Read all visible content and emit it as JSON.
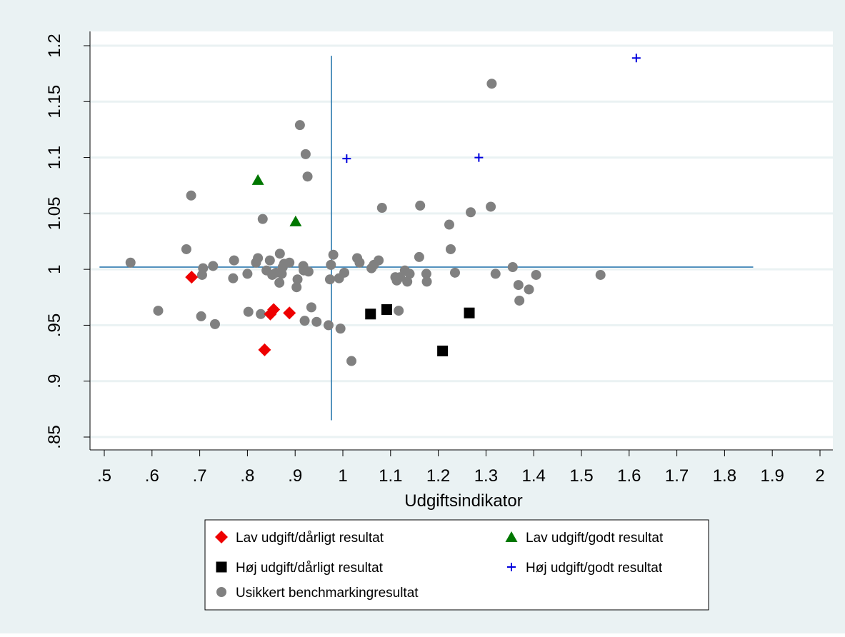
{
  "chart_data": {
    "type": "scatter",
    "title": "",
    "xlabel": "Udgiftsindikator",
    "ylabel": "",
    "xlim": [
      0.47,
      2.0
    ],
    "ylim": [
      0.835,
      1.205
    ],
    "x_ticks": [
      0.5,
      0.6,
      0.7,
      0.8,
      0.9,
      1.0,
      1.1,
      1.2,
      1.3,
      1.4,
      1.5,
      1.6,
      1.7,
      1.8,
      1.9,
      2.0
    ],
    "x_tick_labels": [
      ".5",
      ".6",
      ".7",
      ".8",
      ".9",
      "1",
      "1.1",
      "1.2",
      "1.3",
      "1.4",
      "1.5",
      "1.6",
      "1.7",
      "1.8",
      "1.9",
      "2"
    ],
    "y_ticks": [
      0.85,
      0.9,
      0.95,
      1.0,
      1.05,
      1.1,
      1.15,
      1.2
    ],
    "y_tick_labels": [
      ".85",
      ".9",
      ".95",
      "1",
      "1.05",
      "1.1",
      "1.15",
      "1.2"
    ],
    "grid": "horizontal",
    "legend_position": "bottom",
    "colors": {
      "plot_bg": "#ffffff",
      "outer_bg": "#eaf2f3",
      "grid": "#eaf2f3",
      "axis": "#000000",
      "reference_line": "#1a6ea8"
    },
    "reference_lines": {
      "vertical": {
        "x": 0.976,
        "y_range": [
          0.865,
          1.191
        ]
      },
      "horizontal": {
        "y": 1.002,
        "x_range": [
          0.49,
          1.86
        ]
      }
    },
    "series": [
      {
        "name": "Lav udgift/dårligt resultat",
        "marker": "diamond",
        "color": "#ee0000",
        "points": [
          [
            0.683,
            0.993
          ],
          [
            0.855,
            0.964
          ],
          [
            0.848,
            0.96
          ],
          [
            0.888,
            0.961
          ],
          [
            0.836,
            0.928
          ]
        ]
      },
      {
        "name": "Lav udgift/godt resultat",
        "marker": "triangle",
        "color": "#007700",
        "points": [
          [
            0.822,
            1.08
          ],
          [
            0.901,
            1.043
          ]
        ]
      },
      {
        "name": "Høj udgift/dårligt resultat",
        "marker": "square",
        "color": "#000000",
        "points": [
          [
            1.058,
            0.96
          ],
          [
            1.092,
            0.964
          ],
          [
            1.265,
            0.961
          ],
          [
            1.209,
            0.927
          ]
        ]
      },
      {
        "name": "Høj udgift/godt resultat",
        "marker": "plus",
        "color": "#0000dd",
        "points": [
          [
            1.615,
            1.189
          ],
          [
            1.008,
            1.099
          ],
          [
            1.285,
            1.1
          ]
        ]
      },
      {
        "name": "Usikkert benchmarkingresultat",
        "marker": "circle",
        "color": "#808080",
        "points": [
          [
            0.555,
            1.006
          ],
          [
            0.613,
            0.963
          ],
          [
            0.672,
            1.018
          ],
          [
            0.682,
            1.066
          ],
          [
            0.703,
            0.958
          ],
          [
            0.705,
            0.995
          ],
          [
            0.707,
            1.001
          ],
          [
            0.728,
            1.003
          ],
          [
            0.732,
            0.951
          ],
          [
            0.77,
            0.992
          ],
          [
            0.772,
            1.008
          ],
          [
            0.8,
            0.996
          ],
          [
            0.802,
            0.962
          ],
          [
            0.818,
            1.006
          ],
          [
            0.822,
            1.01
          ],
          [
            0.828,
            0.96
          ],
          [
            0.832,
            1.045
          ],
          [
            0.84,
            0.999
          ],
          [
            0.847,
            1.008
          ],
          [
            0.852,
            0.995
          ],
          [
            0.86,
            0.997
          ],
          [
            0.867,
            0.988
          ],
          [
            0.868,
            1.014
          ],
          [
            0.872,
            0.996
          ],
          [
            0.874,
            1.002
          ],
          [
            0.877,
            1.005
          ],
          [
            0.888,
            1.006
          ],
          [
            0.903,
            0.984
          ],
          [
            0.905,
            0.991
          ],
          [
            0.91,
            1.129
          ],
          [
            0.917,
            1.003
          ],
          [
            0.918,
            0.999
          ],
          [
            0.92,
            0.954
          ],
          [
            0.922,
            1.103
          ],
          [
            0.926,
            1.083
          ],
          [
            0.928,
            0.998
          ],
          [
            0.934,
            0.966
          ],
          [
            0.945,
            0.953
          ],
          [
            0.97,
            0.95
          ],
          [
            0.973,
            0.991
          ],
          [
            0.975,
            1.004
          ],
          [
            0.98,
            1.013
          ],
          [
            0.992,
            0.992
          ],
          [
            0.995,
            0.947
          ],
          [
            1.003,
            0.997
          ],
          [
            1.018,
            0.918
          ],
          [
            1.03,
            1.01
          ],
          [
            1.035,
            1.006
          ],
          [
            1.06,
            1.001
          ],
          [
            1.065,
            1.004
          ],
          [
            1.075,
            1.008
          ],
          [
            1.082,
            1.055
          ],
          [
            1.11,
            0.993
          ],
          [
            1.113,
            0.99
          ],
          [
            1.117,
            0.963
          ],
          [
            1.12,
            0.993
          ],
          [
            1.13,
            0.999
          ],
          [
            1.135,
            0.989
          ],
          [
            1.14,
            0.996
          ],
          [
            1.16,
            1.011
          ],
          [
            1.162,
            1.057
          ],
          [
            1.175,
            0.996
          ],
          [
            1.176,
            0.989
          ],
          [
            1.223,
            1.04
          ],
          [
            1.226,
            1.018
          ],
          [
            1.235,
            0.997
          ],
          [
            1.268,
            1.051
          ],
          [
            1.31,
            1.056
          ],
          [
            1.312,
            1.166
          ],
          [
            1.32,
            0.996
          ],
          [
            1.356,
            1.002
          ],
          [
            1.368,
            0.986
          ],
          [
            1.37,
            0.972
          ],
          [
            1.39,
            0.982
          ],
          [
            1.405,
            0.995
          ],
          [
            1.54,
            0.995
          ]
        ]
      }
    ]
  }
}
